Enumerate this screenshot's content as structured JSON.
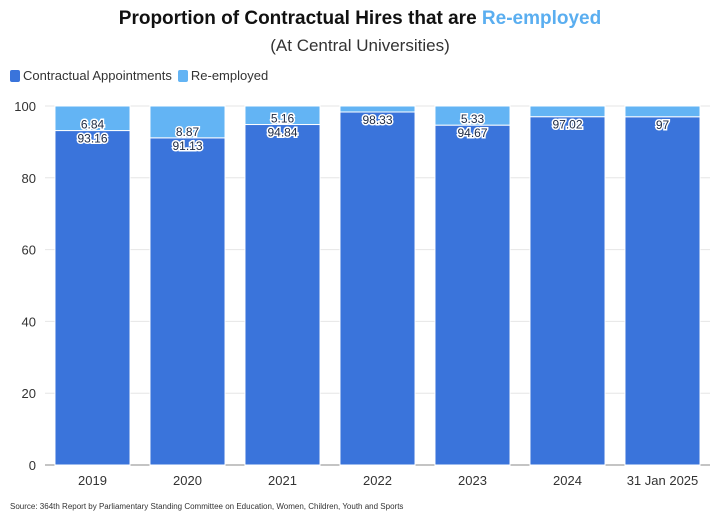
{
  "title": {
    "prefix": "Proportion of Contractual Hires that are ",
    "highlight": "Re-employed"
  },
  "subtitle": "(At Central Universities)",
  "source": "Source: 364th Report by Parliamentary Standing Committee on Education, Women, Children, Youth and Sports",
  "colors": {
    "contractual": "#3a74db",
    "reemployed": "#63b4f4",
    "grid": "#e6e6e6"
  },
  "chart_data": {
    "type": "bar",
    "stacked": true,
    "title": "Proportion of Contractual Hires that are Re-employed",
    "subtitle": "(At Central Universities)",
    "categories": [
      "2019",
      "2020",
      "2021",
      "2022",
      "2023",
      "2024",
      "31 Jan 2025"
    ],
    "series": [
      {
        "name": "Contractual Appointments",
        "values": [
          93.16,
          91.13,
          94.84,
          98.33,
          94.67,
          97.02,
          97
        ]
      },
      {
        "name": "Re-employed",
        "values": [
          6.84,
          8.87,
          5.16,
          1.67,
          5.33,
          2.98,
          3
        ]
      }
    ],
    "bar_labels": {
      "Contractual Appointments": [
        "93.16",
        "91.13",
        "94.84",
        "98.33",
        "94.67",
        "97.02",
        "97"
      ],
      "Re-employed": [
        "6.84",
        "8.87",
        "5.16",
        "",
        "5.33",
        "",
        ""
      ]
    },
    "ylim": [
      0,
      100
    ],
    "yticks": [
      0,
      20,
      40,
      60,
      80,
      100
    ],
    "grid": true,
    "legend_position": "top-left"
  }
}
